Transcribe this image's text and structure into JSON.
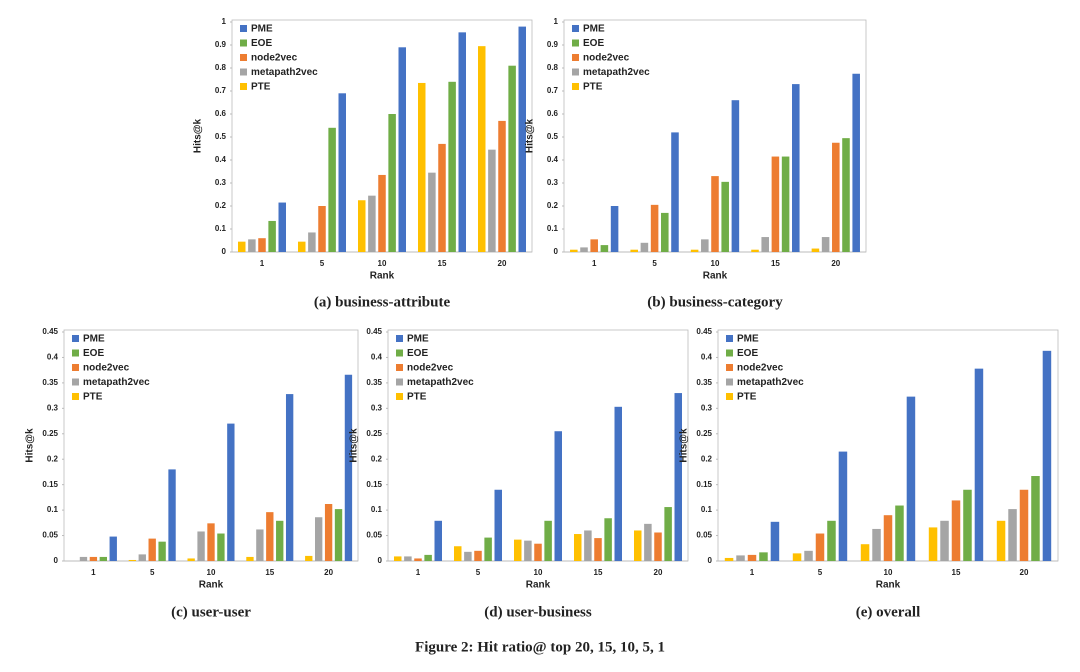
{
  "chart_data": [
    {
      "type": "bar",
      "subtitle": "(a) business-attribute",
      "xlabel": "Rank",
      "ylabel": "Hits@k",
      "categories": [
        "1",
        "5",
        "10",
        "15",
        "20"
      ],
      "series": [
        {
          "name": "PME",
          "color": "#4472c4",
          "values": [
            0.215,
            0.69,
            0.89,
            0.955,
            0.98
          ]
        },
        {
          "name": "EOE",
          "color": "#70ad47",
          "values": [
            0.135,
            0.54,
            0.6,
            0.74,
            0.81
          ]
        },
        {
          "name": "node2vec",
          "color": "#ed7d31",
          "values": [
            0.06,
            0.2,
            0.335,
            0.47,
            0.57
          ]
        },
        {
          "name": "metapath2vec",
          "color": "#a5a5a5",
          "values": [
            0.055,
            0.085,
            0.245,
            0.345,
            0.445
          ]
        },
        {
          "name": "PTE",
          "color": "#ffc000",
          "values": [
            0.045,
            0.045,
            0.225,
            0.735,
            0.895
          ]
        }
      ],
      "ylim": [
        0,
        1
      ],
      "yticks": [
        0,
        0.1,
        0.2,
        0.3,
        0.4,
        0.5,
        0.6,
        0.7,
        0.8,
        0.9,
        1
      ],
      "legend": "upper left"
    },
    {
      "type": "bar",
      "subtitle": "(b) business-category",
      "xlabel": "Rank",
      "ylabel": "Hits@k",
      "categories": [
        "1",
        "5",
        "10",
        "15",
        "20"
      ],
      "series": [
        {
          "name": "PME",
          "color": "#4472c4",
          "values": [
            0.2,
            0.52,
            0.66,
            0.73,
            0.775
          ]
        },
        {
          "name": "EOE",
          "color": "#70ad47",
          "values": [
            0.03,
            0.17,
            0.305,
            0.415,
            0.495
          ]
        },
        {
          "name": "node2vec",
          "color": "#ed7d31",
          "values": [
            0.055,
            0.205,
            0.33,
            0.415,
            0.475
          ]
        },
        {
          "name": "metapath2vec",
          "color": "#a5a5a5",
          "values": [
            0.02,
            0.04,
            0.055,
            0.065,
            0.065
          ]
        },
        {
          "name": "PTE",
          "color": "#ffc000",
          "values": [
            0.01,
            0.01,
            0.01,
            0.01,
            0.015
          ]
        }
      ],
      "ylim": [
        0,
        1
      ],
      "yticks": [
        0,
        0.1,
        0.2,
        0.3,
        0.4,
        0.5,
        0.6,
        0.7,
        0.8,
        0.9,
        1
      ],
      "legend": "upper left"
    },
    {
      "type": "bar",
      "subtitle": "(c) user-user",
      "xlabel": "Rank",
      "ylabel": "Hits@k",
      "categories": [
        "1",
        "5",
        "10",
        "15",
        "20"
      ],
      "series": [
        {
          "name": "PME",
          "color": "#4472c4",
          "values": [
            0.048,
            0.18,
            0.27,
            0.328,
            0.366
          ]
        },
        {
          "name": "EOE",
          "color": "#70ad47",
          "values": [
            0.008,
            0.038,
            0.054,
            0.079,
            0.102
          ]
        },
        {
          "name": "node2vec",
          "color": "#ed7d31",
          "values": [
            0.008,
            0.044,
            0.074,
            0.096,
            0.112
          ]
        },
        {
          "name": "metapath2vec",
          "color": "#a5a5a5",
          "values": [
            0.008,
            0.013,
            0.058,
            0.062,
            0.086
          ]
        },
        {
          "name": "PTE",
          "color": "#ffc000",
          "values": [
            0,
            0.002,
            0.005,
            0.008,
            0.01
          ]
        }
      ],
      "ylim": [
        0,
        0.45
      ],
      "yticks": [
        0,
        0.05,
        0.1,
        0.15,
        0.2,
        0.25,
        0.3,
        0.35,
        0.4,
        0.45
      ],
      "legend": "upper left"
    },
    {
      "type": "bar",
      "subtitle": "(d) user-business",
      "xlabel": "Rank",
      "ylabel": "Hits@k",
      "categories": [
        "1",
        "5",
        "10",
        "15",
        "20"
      ],
      "series": [
        {
          "name": "PME",
          "color": "#4472c4",
          "values": [
            0.079,
            0.14,
            0.255,
            0.303,
            0.33
          ]
        },
        {
          "name": "EOE",
          "color": "#70ad47",
          "values": [
            0.012,
            0.046,
            0.079,
            0.084,
            0.106
          ]
        },
        {
          "name": "node2vec",
          "color": "#ed7d31",
          "values": [
            0.005,
            0.02,
            0.034,
            0.045,
            0.056
          ]
        },
        {
          "name": "metapath2vec",
          "color": "#a5a5a5",
          "values": [
            0.009,
            0.018,
            0.04,
            0.06,
            0.073
          ]
        },
        {
          "name": "PTE",
          "color": "#ffc000",
          "values": [
            0.009,
            0.029,
            0.042,
            0.053,
            0.06
          ]
        }
      ],
      "ylim": [
        0,
        0.45
      ],
      "yticks": [
        0,
        0.05,
        0.1,
        0.15,
        0.2,
        0.25,
        0.3,
        0.35,
        0.4,
        0.45
      ],
      "legend": "upper left"
    },
    {
      "type": "bar",
      "subtitle": "(e) overall",
      "xlabel": "Rank",
      "ylabel": "Hits@k",
      "categories": [
        "1",
        "5",
        "10",
        "15",
        "20"
      ],
      "series": [
        {
          "name": "PME",
          "color": "#4472c4",
          "values": [
            0.077,
            0.215,
            0.323,
            0.378,
            0.413
          ]
        },
        {
          "name": "EOE",
          "color": "#70ad47",
          "values": [
            0.017,
            0.079,
            0.109,
            0.14,
            0.167
          ]
        },
        {
          "name": "node2vec",
          "color": "#ed7d31",
          "values": [
            0.012,
            0.054,
            0.09,
            0.119,
            0.14
          ]
        },
        {
          "name": "metapath2vec",
          "color": "#a5a5a5",
          "values": [
            0.011,
            0.02,
            0.063,
            0.079,
            0.102
          ]
        },
        {
          "name": "PTE",
          "color": "#ffc000",
          "values": [
            0.006,
            0.015,
            0.033,
            0.066,
            0.079
          ]
        }
      ],
      "ylim": [
        0,
        0.45
      ],
      "yticks": [
        0,
        0.05,
        0.1,
        0.15,
        0.2,
        0.25,
        0.3,
        0.35,
        0.4,
        0.45
      ],
      "legend": "upper left"
    }
  ],
  "caption": "Figure 2: Hit ratio@ top 20, 15, 10, 5, 1"
}
